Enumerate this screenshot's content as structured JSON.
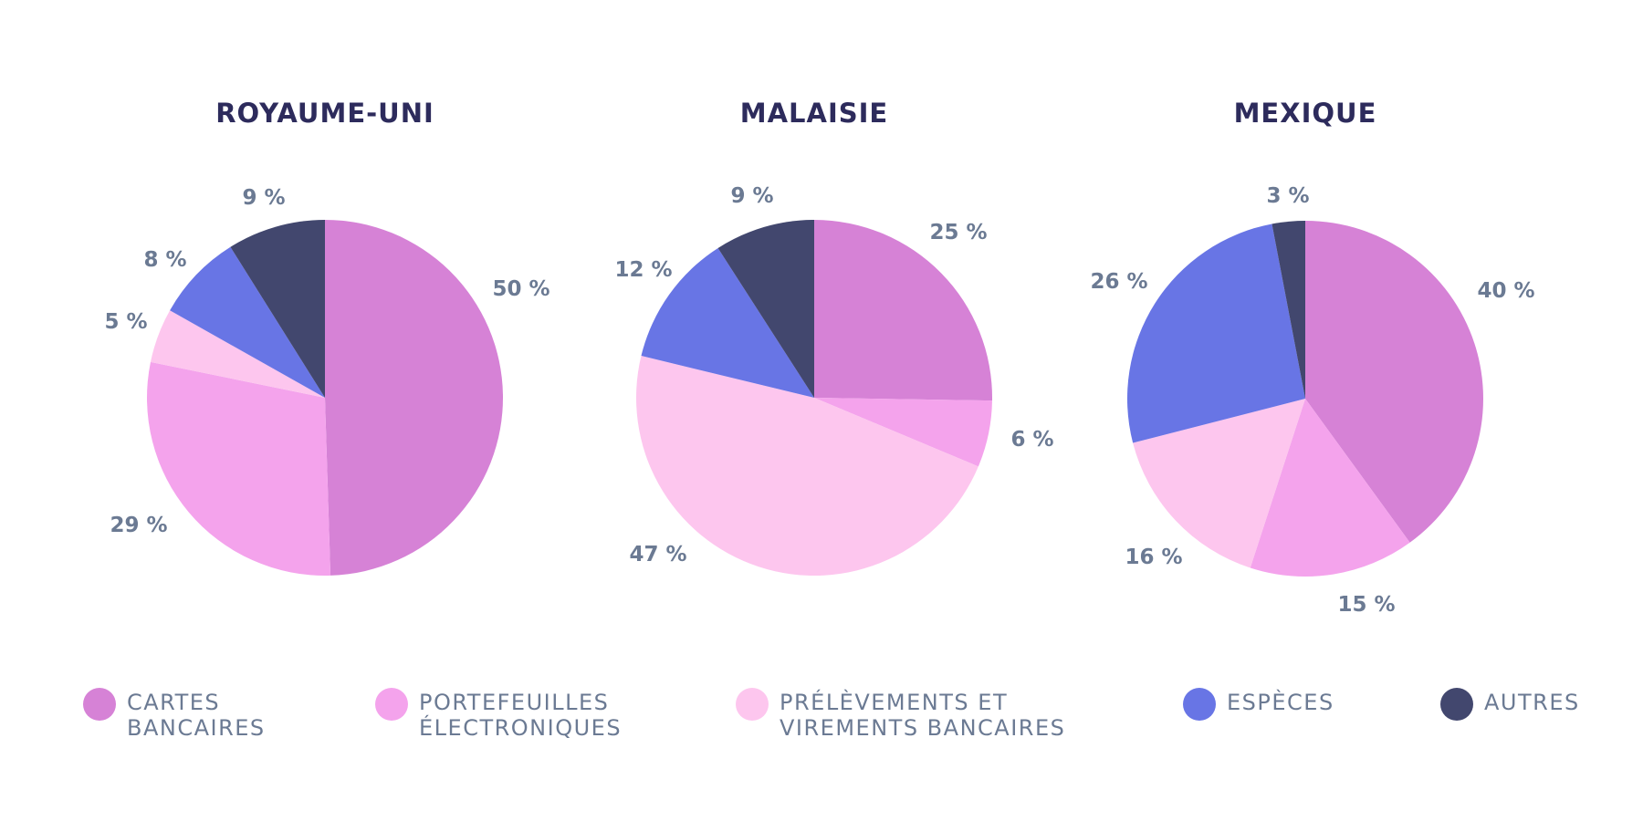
{
  "colors": {
    "cartes": "#d682d6",
    "portefeuilles": "#f4a3ec",
    "prelevements": "#fdc6ee",
    "especes": "#6875e5",
    "autres": "#42476e"
  },
  "legend": [
    {
      "key": "cartes",
      "label": "CARTES\nBANCAIRES"
    },
    {
      "key": "portefeuilles",
      "label": "PORTEFEUILLES\nÉLECTRONIQUES"
    },
    {
      "key": "prelevements",
      "label": "PRÉLÈVEMENTS ET\nVIREMENTS BANCAIRES"
    },
    {
      "key": "especes",
      "label": "ESPÈCES"
    },
    {
      "key": "autres",
      "label": "AUTRES"
    }
  ],
  "chart_data": [
    {
      "type": "pie",
      "title": "ROYAUME-UNI",
      "legend_position": "bottom",
      "categories": [
        "cartes",
        "portefeuilles",
        "prelevements",
        "especes",
        "autres"
      ],
      "values": [
        50,
        29,
        5,
        8,
        9
      ],
      "labels": [
        "50 %",
        "29 %",
        "5 %",
        "8 %",
        "9 %"
      ]
    },
    {
      "type": "pie",
      "title": "MALAISIE",
      "legend_position": "bottom",
      "categories": [
        "cartes",
        "portefeuilles",
        "prelevements",
        "especes",
        "autres"
      ],
      "values": [
        25,
        6,
        47,
        12,
        9
      ],
      "labels": [
        "25 %",
        "6 %",
        "47 %",
        "12 %",
        "9 %"
      ]
    },
    {
      "type": "pie",
      "title": "MEXIQUE",
      "legend_position": "bottom",
      "categories": [
        "cartes",
        "portefeuilles",
        "prelevements",
        "especes",
        "autres"
      ],
      "values": [
        40,
        15,
        16,
        26,
        3
      ],
      "labels": [
        "40 %",
        "15 %",
        "16 %",
        "26 %",
        "3 %"
      ]
    }
  ]
}
